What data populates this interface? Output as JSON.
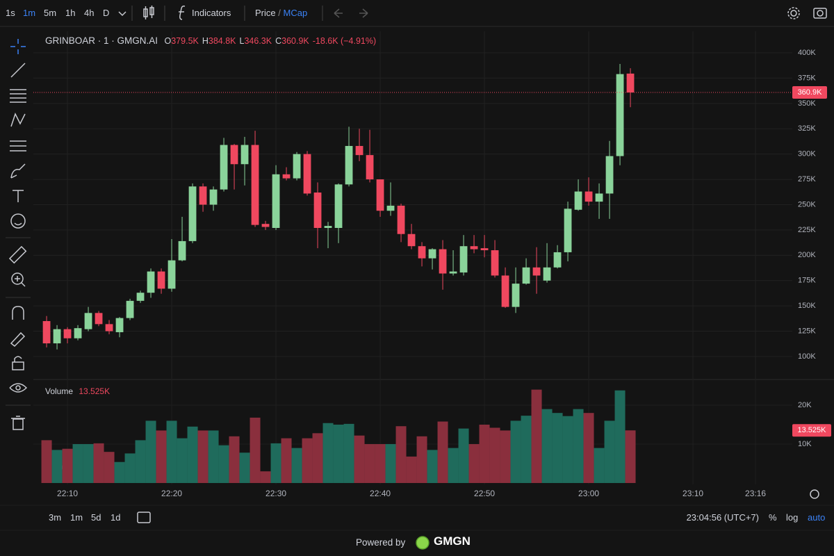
{
  "toolbar": {
    "intervals": [
      {
        "label": "1s"
      },
      {
        "label": "1m",
        "active": true
      },
      {
        "label": "5m"
      },
      {
        "label": "1h"
      },
      {
        "label": "4h"
      },
      {
        "label": "D"
      }
    ],
    "indicators": "Indicators",
    "price": "Price",
    "separator": "/",
    "mcap": "MCap"
  },
  "bottom_bar": {
    "ranges": [
      "3m",
      "1m",
      "5d",
      "1d"
    ],
    "clock": "23:04:56 (UTC+7)",
    "scale_buttons": [
      {
        "label": "%"
      },
      {
        "label": "log"
      },
      {
        "label": "auto",
        "active": true
      }
    ]
  },
  "footer": {
    "powered": "Powered by",
    "brand": "GMGN"
  },
  "chart_data": {
    "type": "candlestick",
    "title": "GRINBOAR · 1 · GMGN.AI",
    "legend": {
      "open": {
        "key": "O",
        "value": "379.5K"
      },
      "high": {
        "key": "H",
        "value": "384.8K"
      },
      "low": {
        "key": "L",
        "value": "346.3K"
      },
      "close": {
        "key": "C",
        "value": "360.9K"
      },
      "change": "-18.6K (−4.91%)"
    },
    "volume_title": "Volume",
    "last_labels": {
      "volume_legend": "13.525K",
      "close": "360.9K",
      "volume": "13.525K"
    },
    "up_color": "#8ad39a",
    "down_color": "#f0485f",
    "volume_up_color": "#1f6b5c",
    "volume_down_color": "#8a2f3d",
    "grid": true,
    "log_scale": false,
    "x": [
      1328,
      1329,
      1330,
      1331,
      1332,
      1333,
      1334,
      1335,
      1336,
      1337,
      1338,
      1339,
      1340,
      1341,
      1342,
      1343,
      1344,
      1345,
      1346,
      1347,
      1348,
      1349,
      1350,
      1351,
      1352,
      1353,
      1354,
      1355,
      1356,
      1357,
      1358,
      1359,
      1360,
      1361,
      1362,
      1363,
      1364,
      1365,
      1366,
      1367,
      1368,
      1369,
      1370,
      1371,
      1372,
      1373,
      1374,
      1375,
      1376,
      1377,
      1378,
      1379,
      1380,
      1381,
      1382,
      1383,
      1384
    ],
    "open": [
      135000,
      113000,
      127000,
      118000,
      127000,
      143000,
      132000,
      124000,
      138000,
      155000,
      163000,
      184000,
      167000,
      195000,
      214000,
      268000,
      250000,
      265000,
      309000,
      290000,
      309000,
      231000,
      227000,
      280000,
      276000,
      300000,
      262000,
      227000,
      227000,
      270000,
      308000,
      299000,
      275000,
      244000,
      249000,
      221000,
      209000,
      197000,
      206000,
      182000,
      183000,
      209000,
      207000,
      205000,
      180000,
      149000,
      172000,
      188000,
      175000,
      188000,
      203000,
      245000,
      263000,
      253000,
      261000,
      298000,
      379500
    ],
    "high": [
      140000,
      131000,
      129000,
      131000,
      149000,
      145000,
      136000,
      139000,
      157000,
      165000,
      187000,
      187000,
      216000,
      238000,
      271000,
      271000,
      268000,
      316000,
      310000,
      317000,
      323000,
      234000,
      289000,
      287000,
      302000,
      303000,
      272000,
      233000,
      271000,
      327000,
      325000,
      324000,
      275000,
      272000,
      251000,
      231000,
      213000,
      207000,
      215000,
      205000,
      220000,
      220000,
      220000,
      215000,
      188000,
      188000,
      197000,
      208000,
      212000,
      210000,
      253000,
      275000,
      277000,
      271000,
      313000,
      389000,
      384800
    ],
    "low": [
      109000,
      107000,
      113000,
      116000,
      125000,
      130000,
      122000,
      119000,
      136000,
      153000,
      158000,
      162000,
      164000,
      194000,
      212000,
      243000,
      244000,
      263000,
      265000,
      269000,
      228000,
      225000,
      225000,
      274000,
      274000,
      259000,
      207000,
      207000,
      212000,
      268000,
      293000,
      272000,
      238000,
      239000,
      213000,
      206000,
      189000,
      186000,
      166000,
      180000,
      180000,
      202000,
      198000,
      178000,
      148000,
      143000,
      171000,
      162000,
      173000,
      187000,
      194000,
      244000,
      249000,
      236000,
      236000,
      289000,
      346300
    ],
    "close": [
      113000,
      127000,
      118000,
      128000,
      143000,
      132000,
      125000,
      138000,
      155000,
      163000,
      184000,
      167000,
      195000,
      214000,
      268000,
      250000,
      265000,
      309000,
      290000,
      309000,
      230000,
      228000,
      280000,
      276000,
      300000,
      261000,
      227000,
      229000,
      270000,
      308000,
      299000,
      275000,
      244000,
      249000,
      221000,
      209000,
      197000,
      206000,
      182000,
      184000,
      209000,
      206000,
      205000,
      180000,
      149000,
      172000,
      188000,
      180000,
      188000,
      203000,
      246000,
      263000,
      253000,
      261000,
      298000,
      379000,
      360900
    ],
    "volume": [
      11000,
      8500,
      8800,
      10000,
      10000,
      10200,
      8000,
      5400,
      7600,
      11000,
      16000,
      13500,
      16000,
      11500,
      14500,
      13500,
      13500,
      9700,
      12000,
      7800,
      16800,
      3000,
      10200,
      11500,
      9000,
      11500,
      12800,
      15400,
      15000,
      15200,
      12200,
      10000,
      10000,
      10000,
      14600,
      6800,
      12000,
      8500,
      15800,
      9000,
      14000,
      10000,
      15000,
      14200,
      13500,
      16000,
      17300,
      24000,
      19000,
      18000,
      17200,
      19000,
      18000,
      9000,
      16000,
      23800,
      13525
    ],
    "xlim": [
      1326.73,
      1399.53
    ],
    "xticks": [
      {
        "value": 1330,
        "label": "22:10"
      },
      {
        "value": 1340,
        "label": "22:20"
      },
      {
        "value": 1350,
        "label": "22:30"
      },
      {
        "value": 1360,
        "label": "22:40"
      },
      {
        "value": 1370,
        "label": "22:50"
      },
      {
        "value": 1380,
        "label": "23:00"
      },
      {
        "value": 1390,
        "label": "23:10"
      },
      {
        "value": 1396,
        "label": "23:16"
      }
    ],
    "ylim": [
      78000,
      421300
    ],
    "yticks": [
      {
        "value": 100000,
        "label": "100K"
      },
      {
        "value": 125000,
        "label": "125K"
      },
      {
        "value": 150000,
        "label": "150K"
      },
      {
        "value": 175000,
        "label": "175K"
      },
      {
        "value": 200000,
        "label": "200K"
      },
      {
        "value": 225000,
        "label": "225K"
      },
      {
        "value": 250000,
        "label": "250K"
      },
      {
        "value": 275000,
        "label": "275K"
      },
      {
        "value": 300000,
        "label": "300K"
      },
      {
        "value": 325000,
        "label": "325K"
      },
      {
        "value": 350000,
        "label": "350K"
      },
      {
        "value": 375000,
        "label": "375K"
      },
      {
        "value": 400000,
        "label": "400K"
      }
    ],
    "volume_lim": [
      -360,
      26430
    ],
    "volume_ticks": [
      {
        "value": 10000,
        "label": "10K"
      },
      {
        "value": 20000,
        "label": "20K"
      }
    ]
  }
}
